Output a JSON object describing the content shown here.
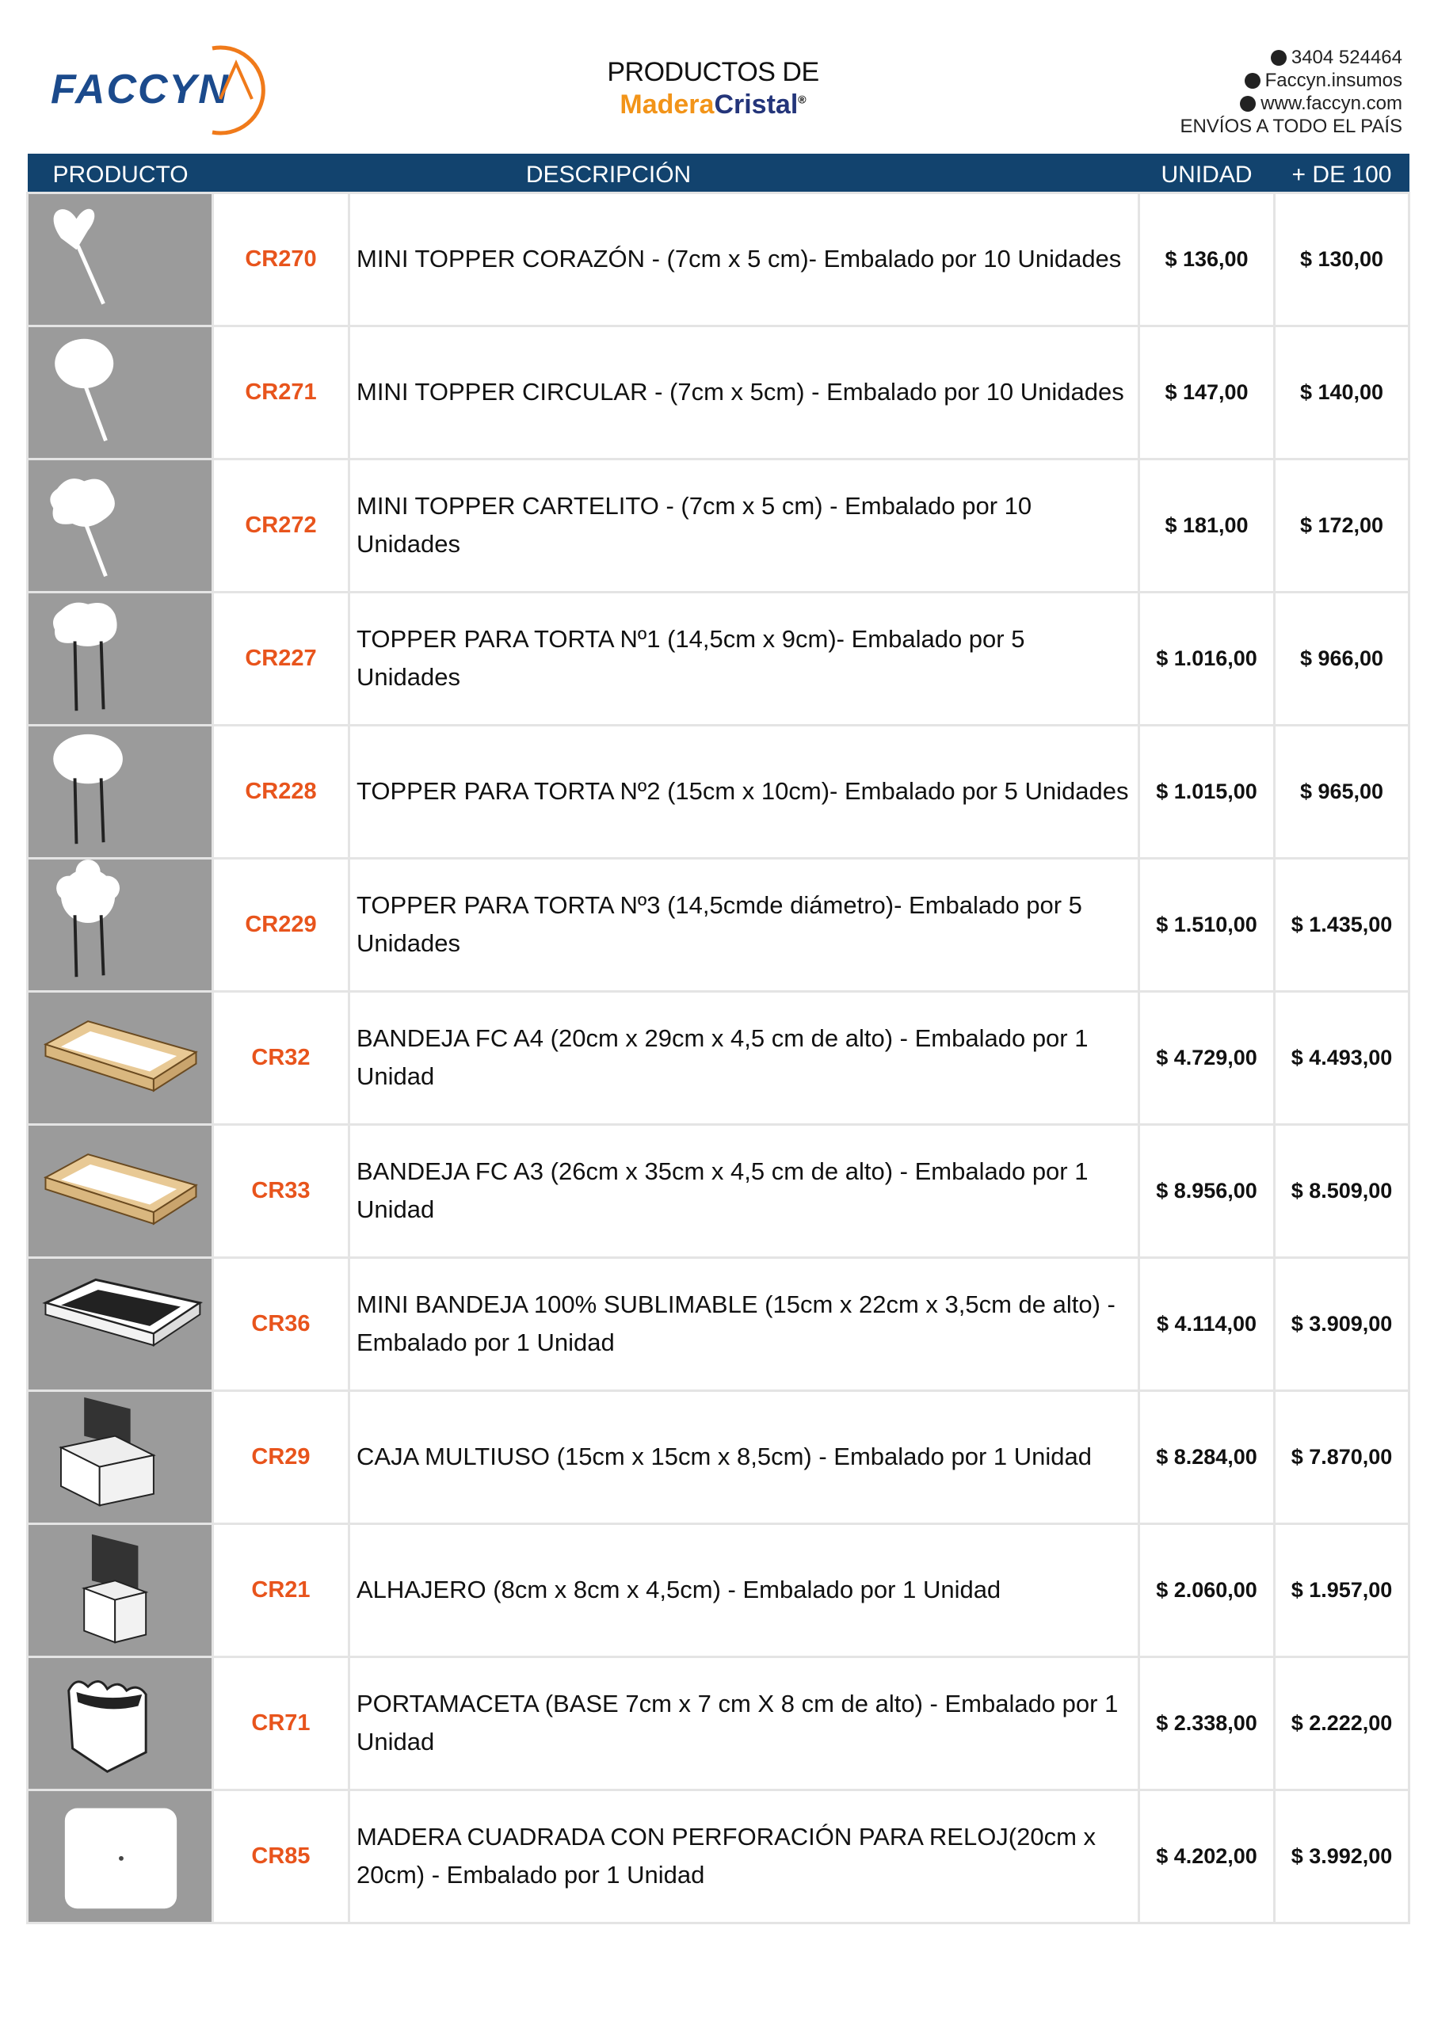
{
  "header": {
    "logo": "FACCYN",
    "title_line1": "PRODUCTOS DE",
    "brand_part1": "Madera",
    "brand_part2": "Cristal",
    "brand_mark": "®",
    "phone": "3404 524464",
    "instagram": "Faccyn.insumos",
    "website": "www.faccyn.com",
    "shipping": "ENVÍOS A TODO EL PAÍS"
  },
  "columns": {
    "product": "PRODUCTO",
    "description": "DESCRIPCIÓN",
    "unit": "UNIDAD",
    "over100": "+ DE 100"
  },
  "colors": {
    "header_bg": "#12436e",
    "code": "#e8541c",
    "image_bg": "#9b9b9b"
  },
  "rows": [
    {
      "icon": "heart-topper",
      "code": "CR270",
      "desc": "MINI TOPPER CORAZÓN - (7cm x 5 cm)- Embalado por 10 Unidades",
      "unit": "$ 136,00",
      "over100": "$ 130,00"
    },
    {
      "icon": "circle-topper",
      "code": "CR271",
      "desc": "MINI TOPPER CIRCULAR - (7cm x 5cm) - Embalado por 10 Unidades",
      "unit": "$ 147,00",
      "over100": "$ 140,00"
    },
    {
      "icon": "sign-topper",
      "code": "CR272",
      "desc": "MINI TOPPER CARTELITO - (7cm x 5 cm) - Embalado por 10 Unidades",
      "unit": "$ 181,00",
      "over100": "$ 172,00"
    },
    {
      "icon": "cake-topper-sign",
      "code": "CR227",
      "desc": "TOPPER PARA TORTA Nº1 (14,5cm x 9cm)- Embalado por 5 Unidades",
      "unit": "$ 1.016,00",
      "over100": "$ 966,00"
    },
    {
      "icon": "cake-topper-oval",
      "code": "CR228",
      "desc": "TOPPER PARA TORTA Nº2 (15cm x 10cm)- Embalado por 5 Unidades",
      "unit": "$ 1.015,00",
      "over100": "$ 965,00"
    },
    {
      "icon": "cake-topper-flower",
      "code": "CR229",
      "desc": "TOPPER PARA TORTA Nº3 (14,5cmde diámetro)- Embalado por 5 Unidades",
      "unit": "$ 1.510,00",
      "over100": "$ 1.435,00"
    },
    {
      "icon": "tray",
      "code": "CR32",
      "desc": "BANDEJA FC A4  (20cm x 29cm x 4,5 cm de alto) - Embalado por 1 Unidad",
      "unit": "$ 4.729,00",
      "over100": "$ 4.493,00"
    },
    {
      "icon": "tray",
      "code": "CR33",
      "desc": "BANDEJA FC A3 (26cm x 35cm x 4,5 cm de alto) - Embalado por  1 Unidad",
      "unit": "$ 8.956,00",
      "over100": "$ 8.509,00"
    },
    {
      "icon": "white-tray",
      "code": "CR36",
      "desc": "MINI BANDEJA 100% SUBLIMABLE (15cm x 22cm x 3,5cm de alto) - Embalado por  1 Unidad",
      "unit": "$ 4.114,00",
      "over100": "$ 3.909,00"
    },
    {
      "icon": "box",
      "code": "CR29",
      "desc": "CAJA MULTIUSO (15cm x 15cm x 8,5cm) - Embalado por  1 Unidad",
      "unit": "$ 8.284,00",
      "over100": "$ 7.870,00"
    },
    {
      "icon": "jewel-box",
      "code": "CR21",
      "desc": "ALHAJERO (8cm x 8cm x 4,5cm) - Embalado por  1 Unidad",
      "unit": "$ 2.060,00",
      "over100": "$ 1.957,00"
    },
    {
      "icon": "planter",
      "code": "CR71",
      "desc": "PORTAMACETA (BASE 7cm x 7 cm X 8 cm de alto) - Embalado por 1 Unidad",
      "unit": "$ 2.338,00",
      "over100": "$ 2.222,00"
    },
    {
      "icon": "clock-square",
      "code": "CR85",
      "desc": "MADERA CUADRADA CON PERFORACIÓN PARA RELOJ(20cm x 20cm) - Embalado por  1 Unidad",
      "unit": "$ 4.202,00",
      "over100": "$ 3.992,00"
    }
  ]
}
